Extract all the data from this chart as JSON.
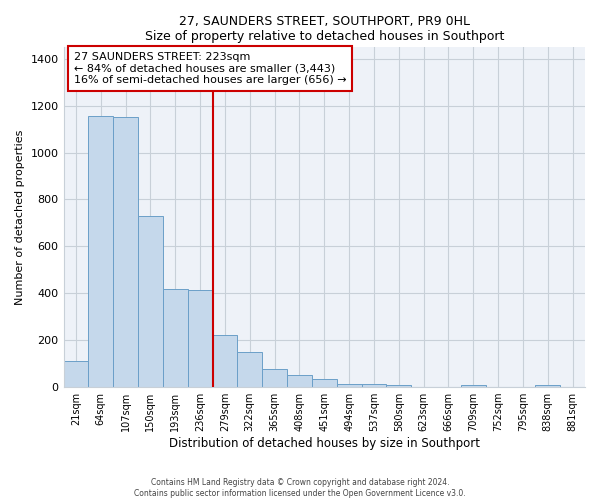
{
  "title": "27, SAUNDERS STREET, SOUTHPORT, PR9 0HL",
  "subtitle": "Size of property relative to detached houses in Southport",
  "xlabel": "Distribution of detached houses by size in Southport",
  "ylabel": "Number of detached properties",
  "bar_labels": [
    "21sqm",
    "64sqm",
    "107sqm",
    "150sqm",
    "193sqm",
    "236sqm",
    "279sqm",
    "322sqm",
    "365sqm",
    "408sqm",
    "451sqm",
    "494sqm",
    "537sqm",
    "580sqm",
    "623sqm",
    "666sqm",
    "709sqm",
    "752sqm",
    "795sqm",
    "838sqm",
    "881sqm"
  ],
  "bar_values": [
    110,
    1155,
    1150,
    730,
    420,
    415,
    220,
    150,
    75,
    50,
    35,
    15,
    15,
    10,
    0,
    0,
    10,
    0,
    0,
    10,
    0
  ],
  "bar_color": "#c5d8eb",
  "bar_edge_color": "#6b9fc8",
  "vline_x": 5.5,
  "vline_color": "#cc0000",
  "annotation_title": "27 SAUNDERS STREET: 223sqm",
  "annotation_line1": "← 84% of detached houses are smaller (3,443)",
  "annotation_line2": "16% of semi-detached houses are larger (656) →",
  "ylim": [
    0,
    1450
  ],
  "yticks": [
    0,
    200,
    400,
    600,
    800,
    1000,
    1200,
    1400
  ],
  "footer_line1": "Contains HM Land Registry data © Crown copyright and database right 2024.",
  "footer_line2": "Contains public sector information licensed under the Open Government Licence v3.0.",
  "background_color": "#ffffff",
  "plot_background": "#eef2f8"
}
